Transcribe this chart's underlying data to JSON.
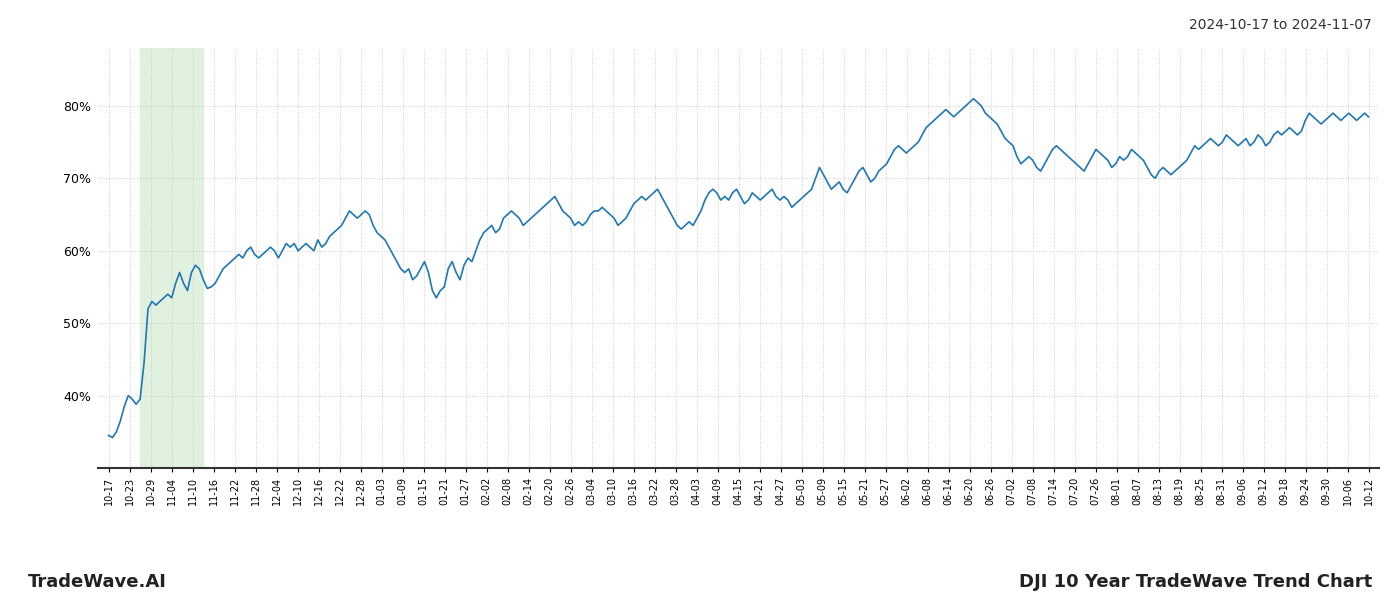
{
  "title_right": "2024-10-17 to 2024-11-07",
  "footer_left": "TradeWave.AI",
  "footer_right": "DJI 10 Year TradeWave Trend Chart",
  "line_color": "#1f77b4",
  "line_width": 1.2,
  "background_color": "#ffffff",
  "grid_color": "#cccccc",
  "grid_style": ":",
  "shade_color": "#d5ecd4",
  "shade_alpha": 0.7,
  "ylim": [
    30,
    88
  ],
  "yticks": [
    40,
    50,
    60,
    70,
    80
  ],
  "x_labels": [
    "10-17",
    "10-23",
    "10-29",
    "11-04",
    "11-10",
    "11-16",
    "11-22",
    "11-28",
    "12-04",
    "12-10",
    "12-16",
    "12-22",
    "12-28",
    "01-03",
    "01-09",
    "01-15",
    "01-21",
    "01-27",
    "02-02",
    "02-08",
    "02-14",
    "02-20",
    "02-26",
    "03-04",
    "03-10",
    "03-16",
    "03-22",
    "03-28",
    "04-03",
    "04-09",
    "04-15",
    "04-21",
    "04-27",
    "05-03",
    "05-09",
    "05-15",
    "05-21",
    "05-27",
    "06-02",
    "06-08",
    "06-14",
    "06-20",
    "06-26",
    "07-02",
    "07-08",
    "07-14",
    "07-20",
    "07-26",
    "08-01",
    "08-07",
    "08-13",
    "08-19",
    "08-25",
    "08-31",
    "09-06",
    "09-12",
    "09-18",
    "09-24",
    "09-30",
    "10-06",
    "10-12"
  ],
  "shade_xstart_label": "10-29",
  "shade_xend_label": "11-10",
  "y_values": [
    34.5,
    34.2,
    35.0,
    36.5,
    38.5,
    40.0,
    39.5,
    38.8,
    39.5,
    44.5,
    52.0,
    53.0,
    52.5,
    53.0,
    53.5,
    54.0,
    53.5,
    55.5,
    57.0,
    55.5,
    54.5,
    57.0,
    58.0,
    57.5,
    56.0,
    54.8,
    55.0,
    55.5,
    56.5,
    57.5,
    58.0,
    58.5,
    59.0,
    59.5,
    59.0,
    60.0,
    60.5,
    59.5,
    59.0,
    59.5,
    60.0,
    60.5,
    60.0,
    59.0,
    60.0,
    61.0,
    60.5,
    61.0,
    60.0,
    60.5,
    61.0,
    60.5,
    60.0,
    61.5,
    60.5,
    61.0,
    62.0,
    62.5,
    63.0,
    63.5,
    64.5,
    65.5,
    65.0,
    64.5,
    65.0,
    65.5,
    65.0,
    63.5,
    62.5,
    62.0,
    61.5,
    60.5,
    59.5,
    58.5,
    57.5,
    57.0,
    57.5,
    56.0,
    56.5,
    57.5,
    58.5,
    57.0,
    54.5,
    53.5,
    54.5,
    55.0,
    57.5,
    58.5,
    57.0,
    56.0,
    58.0,
    59.0,
    58.5,
    60.0,
    61.5,
    62.5,
    63.0,
    63.5,
    62.5,
    63.0,
    64.5,
    65.0,
    65.5,
    65.0,
    64.5,
    63.5,
    64.0,
    64.5,
    65.0,
    65.5,
    66.0,
    66.5,
    67.0,
    67.5,
    66.5,
    65.5,
    65.0,
    64.5,
    63.5,
    64.0,
    63.5,
    64.0,
    65.0,
    65.5,
    65.5,
    66.0,
    65.5,
    65.0,
    64.5,
    63.5,
    64.0,
    64.5,
    65.5,
    66.5,
    67.0,
    67.5,
    67.0,
    67.5,
    68.0,
    68.5,
    67.5,
    66.5,
    65.5,
    64.5,
    63.5,
    63.0,
    63.5,
    64.0,
    63.5,
    64.5,
    65.5,
    67.0,
    68.0,
    68.5,
    68.0,
    67.0,
    67.5,
    67.0,
    68.0,
    68.5,
    67.5,
    66.5,
    67.0,
    68.0,
    67.5,
    67.0,
    67.5,
    68.0,
    68.5,
    67.5,
    67.0,
    67.5,
    67.0,
    66.0,
    66.5,
    67.0,
    67.5,
    68.0,
    68.5,
    70.0,
    71.5,
    70.5,
    69.5,
    68.5,
    69.0,
    69.5,
    68.5,
    68.0,
    69.0,
    70.0,
    71.0,
    71.5,
    70.5,
    69.5,
    70.0,
    71.0,
    71.5,
    72.0,
    73.0,
    74.0,
    74.5,
    74.0,
    73.5,
    74.0,
    74.5,
    75.0,
    76.0,
    77.0,
    77.5,
    78.0,
    78.5,
    79.0,
    79.5,
    79.0,
    78.5,
    79.0,
    79.5,
    80.0,
    80.5,
    81.0,
    80.5,
    80.0,
    79.0,
    78.5,
    78.0,
    77.5,
    76.5,
    75.5,
    75.0,
    74.5,
    73.0,
    72.0,
    72.5,
    73.0,
    72.5,
    71.5,
    71.0,
    72.0,
    73.0,
    74.0,
    74.5,
    74.0,
    73.5,
    73.0,
    72.5,
    72.0,
    71.5,
    71.0,
    72.0,
    73.0,
    74.0,
    73.5,
    73.0,
    72.5,
    71.5,
    72.0,
    73.0,
    72.5,
    73.0,
    74.0,
    73.5,
    73.0,
    72.5,
    71.5,
    70.5,
    70.0,
    71.0,
    71.5,
    71.0,
    70.5,
    71.0,
    71.5,
    72.0,
    72.5,
    73.5,
    74.5,
    74.0,
    74.5,
    75.0,
    75.5,
    75.0,
    74.5,
    75.0,
    76.0,
    75.5,
    75.0,
    74.5,
    75.0,
    75.5,
    74.5,
    75.0,
    76.0,
    75.5,
    74.5,
    75.0,
    76.0,
    76.5,
    76.0,
    76.5,
    77.0,
    76.5,
    76.0,
    76.5,
    78.0,
    79.0,
    78.5,
    78.0,
    77.5,
    78.0,
    78.5,
    79.0,
    78.5,
    78.0,
    78.5,
    79.0,
    78.5,
    78.0,
    78.5,
    79.0,
    78.5
  ]
}
